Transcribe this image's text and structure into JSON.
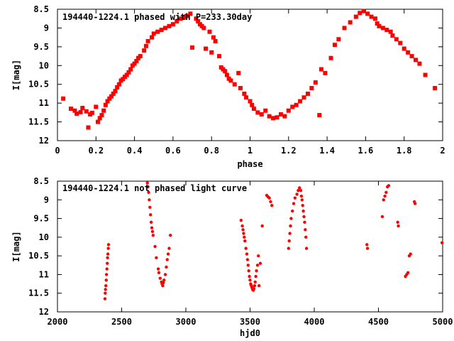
{
  "chart_data": [
    {
      "type": "scatter",
      "title": "194440-1224.1 phased with P=233.30day",
      "xlabel": "phase",
      "ylabel": "I[mag]",
      "xlim": [
        0,
        2
      ],
      "ylim": [
        8.5,
        12
      ],
      "y_inverted": true,
      "xticks": [
        "0",
        "0.2",
        "0.4",
        "0.6",
        "0.8",
        "1",
        "1.2",
        "1.4",
        "1.6",
        "1.8",
        "2"
      ],
      "yticks": [
        "8.5",
        "9",
        "9.5",
        "10",
        "10.5",
        "11",
        "11.5",
        "12"
      ],
      "marker": "filled-square",
      "color": "#ff0000",
      "series": [
        {
          "points": [
            [
              0.03,
              10.88
            ],
            [
              0.07,
              11.15
            ],
            [
              0.09,
              11.2
            ],
            [
              0.1,
              11.28
            ],
            [
              0.12,
              11.24
            ],
            [
              0.13,
              11.13
            ],
            [
              0.15,
              11.22
            ],
            [
              0.16,
              11.65
            ],
            [
              0.17,
              11.3
            ],
            [
              0.18,
              11.26
            ],
            [
              0.2,
              11.1
            ],
            [
              0.21,
              11.5
            ],
            [
              0.22,
              11.4
            ],
            [
              0.23,
              11.32
            ],
            [
              0.24,
              11.2
            ],
            [
              0.25,
              11.05
            ],
            [
              0.26,
              10.95
            ],
            [
              0.27,
              10.88
            ],
            [
              0.28,
              10.82
            ],
            [
              0.29,
              10.75
            ],
            [
              0.3,
              10.68
            ],
            [
              0.31,
              10.58
            ],
            [
              0.32,
              10.5
            ],
            [
              0.33,
              10.4
            ],
            [
              0.34,
              10.36
            ],
            [
              0.35,
              10.3
            ],
            [
              0.36,
              10.25
            ],
            [
              0.37,
              10.18
            ],
            [
              0.38,
              10.1
            ],
            [
              0.39,
              10.0
            ],
            [
              0.4,
              9.95
            ],
            [
              0.41,
              9.88
            ],
            [
              0.42,
              9.8
            ],
            [
              0.43,
              9.75
            ],
            [
              0.45,
              9.6
            ],
            [
              0.46,
              9.48
            ],
            [
              0.47,
              9.35
            ],
            [
              0.49,
              9.25
            ],
            [
              0.5,
              9.15
            ],
            [
              0.52,
              9.1
            ],
            [
              0.54,
              9.05
            ],
            [
              0.56,
              9.0
            ],
            [
              0.58,
              8.95
            ],
            [
              0.6,
              8.9
            ],
            [
              0.62,
              8.82
            ],
            [
              0.64,
              8.75
            ],
            [
              0.66,
              8.72
            ],
            [
              0.67,
              8.68
            ],
            [
              0.69,
              8.62
            ],
            [
              0.7,
              9.52
            ],
            [
              0.72,
              8.75
            ],
            [
              0.73,
              8.82
            ],
            [
              0.74,
              8.9
            ],
            [
              0.75,
              8.95
            ],
            [
              0.76,
              9.0
            ],
            [
              0.77,
              9.55
            ],
            [
              0.79,
              9.1
            ],
            [
              0.8,
              9.65
            ],
            [
              0.81,
              9.25
            ],
            [
              0.82,
              9.35
            ],
            [
              0.84,
              9.75
            ],
            [
              0.85,
              10.05
            ],
            [
              0.86,
              10.1
            ],
            [
              0.87,
              10.15
            ],
            [
              0.88,
              10.25
            ],
            [
              0.89,
              10.35
            ],
            [
              0.9,
              10.4
            ],
            [
              0.92,
              10.5
            ],
            [
              0.94,
              10.2
            ],
            [
              0.95,
              10.6
            ],
            [
              0.97,
              10.75
            ],
            [
              0.98,
              10.85
            ],
            [
              1.0,
              10.95
            ],
            [
              1.01,
              11.05
            ],
            [
              1.02,
              11.15
            ],
            [
              1.04,
              11.25
            ],
            [
              1.06,
              11.3
            ],
            [
              1.08,
              11.2
            ],
            [
              1.1,
              11.35
            ],
            [
              1.12,
              11.4
            ],
            [
              1.14,
              11.38
            ],
            [
              1.16,
              11.3
            ],
            [
              1.18,
              11.35
            ],
            [
              1.2,
              11.2
            ],
            [
              1.22,
              11.1
            ],
            [
              1.24,
              11.05
            ],
            [
              1.26,
              10.95
            ],
            [
              1.28,
              10.85
            ],
            [
              1.3,
              10.75
            ],
            [
              1.32,
              10.6
            ],
            [
              1.34,
              10.45
            ],
            [
              1.36,
              11.32
            ],
            [
              1.37,
              10.1
            ],
            [
              1.39,
              10.2
            ],
            [
              1.42,
              9.8
            ],
            [
              1.44,
              9.45
            ],
            [
              1.46,
              9.3
            ],
            [
              1.49,
              9.0
            ],
            [
              1.52,
              8.85
            ],
            [
              1.55,
              8.7
            ],
            [
              1.57,
              8.6
            ],
            [
              1.59,
              8.55
            ],
            [
              1.61,
              8.62
            ],
            [
              1.63,
              8.7
            ],
            [
              1.65,
              8.75
            ],
            [
              1.66,
              8.88
            ],
            [
              1.67,
              8.95
            ],
            [
              1.69,
              9.0
            ],
            [
              1.71,
              9.05
            ],
            [
              1.73,
              9.1
            ],
            [
              1.74,
              9.2
            ],
            [
              1.76,
              9.3
            ],
            [
              1.78,
              9.4
            ],
            [
              1.8,
              9.55
            ],
            [
              1.82,
              9.65
            ],
            [
              1.84,
              9.75
            ],
            [
              1.86,
              9.85
            ],
            [
              1.88,
              9.95
            ],
            [
              1.91,
              10.25
            ],
            [
              1.96,
              10.6
            ]
          ]
        }
      ]
    },
    {
      "type": "scatter",
      "title": "194440-1224.1 not phased light curve",
      "xlabel": "hjd0",
      "ylabel": "I[mag]",
      "xlim": [
        2000,
        5000
      ],
      "ylim": [
        8.5,
        12
      ],
      "y_inverted": true,
      "xticks": [
        "2000",
        "2500",
        "3000",
        "3500",
        "4000",
        "4500",
        "5000"
      ],
      "yticks": [
        "8.5",
        "9",
        "9.5",
        "10",
        "10.5",
        "11",
        "11.5",
        "12"
      ],
      "marker": "filled-circle",
      "color": "#ff0000",
      "series": [
        {
          "points": [
            [
              2370,
              11.65
            ],
            [
              2372,
              11.5
            ],
            [
              2374,
              11.4
            ],
            [
              2377,
              11.3
            ],
            [
              2380,
              11.15
            ],
            [
              2382,
              11.0
            ],
            [
              2385,
              10.85
            ],
            [
              2388,
              10.7
            ],
            [
              2390,
              10.55
            ],
            [
              2393,
              10.45
            ],
            [
              2396,
              10.3
            ],
            [
              2398,
              10.2
            ],
            [
              2700,
              8.55
            ],
            [
              2705,
              8.65
            ],
            [
              2710,
              8.8
            ],
            [
              2715,
              9.0
            ],
            [
              2720,
              9.2
            ],
            [
              2725,
              9.4
            ],
            [
              2730,
              9.6
            ],
            [
              2735,
              9.75
            ],
            [
              2740,
              9.85
            ],
            [
              2745,
              9.95
            ],
            [
              2760,
              10.25
            ],
            [
              2770,
              10.55
            ],
            [
              2785,
              10.85
            ],
            [
              2790,
              10.95
            ],
            [
              2800,
              11.1
            ],
            [
              2810,
              11.2
            ],
            [
              2815,
              11.25
            ],
            [
              2820,
              11.3
            ],
            [
              2825,
              11.22
            ],
            [
              2830,
              11.15
            ],
            [
              2840,
              11.0
            ],
            [
              2848,
              10.8
            ],
            [
              2855,
              10.6
            ],
            [
              2862,
              10.45
            ],
            [
              2870,
              10.3
            ],
            [
              2880,
              9.95
            ],
            [
              3430,
              9.55
            ],
            [
              3440,
              9.7
            ],
            [
              3445,
              9.8
            ],
            [
              3450,
              9.9
            ],
            [
              3455,
              10.0
            ],
            [
              3460,
              10.1
            ],
            [
              3468,
              10.3
            ],
            [
              3475,
              10.45
            ],
            [
              3480,
              10.6
            ],
            [
              3485,
              10.75
            ],
            [
              3490,
              10.9
            ],
            [
              3495,
              11.05
            ],
            [
              3500,
              11.15
            ],
            [
              3505,
              11.25
            ],
            [
              3510,
              11.3
            ],
            [
              3515,
              11.35
            ],
            [
              3520,
              11.4
            ],
            [
              3525,
              11.42
            ],
            [
              3530,
              11.38
            ],
            [
              3535,
              11.3
            ],
            [
              3540,
              11.2
            ],
            [
              3545,
              11.05
            ],
            [
              3550,
              10.9
            ],
            [
              3558,
              10.75
            ],
            [
              3565,
              10.5
            ],
            [
              3570,
              11.3
            ],
            [
              3580,
              10.7
            ],
            [
              3595,
              9.7
            ],
            [
              3630,
              8.88
            ],
            [
              3640,
              8.92
            ],
            [
              3650,
              8.95
            ],
            [
              3660,
              9.05
            ],
            [
              3670,
              9.15
            ],
            [
              3800,
              10.3
            ],
            [
              3805,
              10.1
            ],
            [
              3810,
              9.9
            ],
            [
              3815,
              9.7
            ],
            [
              3820,
              9.5
            ],
            [
              3830,
              9.3
            ],
            [
              3840,
              9.1
            ],
            [
              3850,
              8.95
            ],
            [
              3865,
              8.85
            ],
            [
              3875,
              8.75
            ],
            [
              3885,
              8.68
            ],
            [
              3895,
              8.75
            ],
            [
              3900,
              8.9
            ],
            [
              3905,
              9.0
            ],
            [
              3910,
              9.15
            ],
            [
              3915,
              9.3
            ],
            [
              3920,
              9.45
            ],
            [
              3925,
              9.6
            ],
            [
              3930,
              9.8
            ],
            [
              3935,
              10.0
            ],
            [
              3940,
              10.3
            ],
            [
              4410,
              10.2
            ],
            [
              4415,
              10.3
            ],
            [
              4530,
              9.45
            ],
            [
              4540,
              9.0
            ],
            [
              4550,
              8.9
            ],
            [
              4560,
              8.8
            ],
            [
              4570,
              8.65
            ],
            [
              4580,
              8.62
            ],
            [
              4650,
              9.6
            ],
            [
              4655,
              9.7
            ],
            [
              4710,
              11.05
            ],
            [
              4720,
              11.0
            ],
            [
              4730,
              10.95
            ],
            [
              4740,
              10.5
            ],
            [
              4750,
              10.45
            ],
            [
              4780,
              9.05
            ],
            [
              4785,
              9.1
            ],
            [
              4995,
              10.15
            ]
          ]
        }
      ]
    }
  ]
}
